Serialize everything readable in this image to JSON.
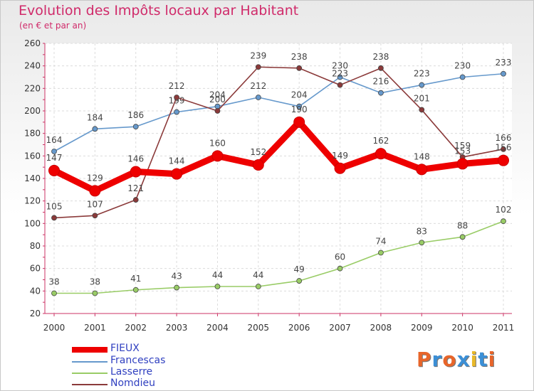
{
  "title": "Evolution des Impôts locaux par Habitant",
  "subtitle": "(en € et par an)",
  "logo": {
    "text": "Proxiti",
    "colors": [
      "#e8652a",
      "#3b8fd6",
      "#e8652a",
      "#3b8fd6",
      "#e8b92a",
      "#3b8fd6",
      "#e8652a"
    ]
  },
  "chart_data": {
    "type": "line",
    "title": "Evolution des Impôts locaux par Habitant",
    "subtitle": "(en € et par an)",
    "xlabel": "",
    "ylabel": "",
    "ylim": [
      20,
      260
    ],
    "yticks": [
      20,
      40,
      60,
      80,
      100,
      120,
      140,
      160,
      180,
      200,
      220,
      240,
      260
    ],
    "grid": true,
    "legend_position": "bottom-left",
    "x": [
      "2000",
      "2001",
      "2002",
      "2003",
      "2004",
      "2005",
      "2006",
      "2007",
      "2008",
      "2009",
      "2010",
      "2011"
    ],
    "series": [
      {
        "name": "Lasserre",
        "color": "#99cc66",
        "values": [
          38,
          38,
          41,
          43,
          44,
          44,
          49,
          60,
          74,
          83,
          88,
          102
        ]
      },
      {
        "name": "Francescas",
        "color": "#6699cc",
        "values": [
          164,
          184,
          186,
          199,
          204,
          212,
          204,
          230,
          216,
          223,
          230,
          233
        ]
      },
      {
        "name": "Nomdieu",
        "color": "#8b3a3a",
        "values": [
          105,
          107,
          121,
          212,
          200,
          239,
          238,
          223,
          238,
          201,
          159,
          166
        ]
      },
      {
        "name": "FIEUX",
        "color": "#ee0000",
        "values": [
          147,
          129,
          146,
          144,
          160,
          152,
          190,
          149,
          162,
          148,
          153,
          156
        ]
      }
    ],
    "data_labels": {
      "Lasserre": [
        "38",
        "38",
        "41",
        "43",
        "44",
        "44",
        "49",
        "60",
        "74",
        "83",
        "88",
        "102"
      ],
      "Francescas": [
        "164",
        "184",
        "186",
        "199",
        "204",
        "212",
        "204",
        "230",
        "216",
        "223",
        "230",
        "233"
      ],
      "Nomdieu": [
        "105",
        "107",
        "121",
        "212",
        "200",
        "239",
        "238",
        "223",
        "238",
        "201",
        "159",
        "166"
      ],
      "FIEUX": [
        "147",
        "129",
        "146",
        "144",
        "160",
        "152",
        "190",
        "149",
        "162",
        "148",
        "153",
        "156"
      ]
    }
  },
  "legend": [
    {
      "label": "FIEUX",
      "color": "#ee0000"
    },
    {
      "label": "Francescas",
      "color": "#6699cc"
    },
    {
      "label": "Lasserre",
      "color": "#99cc66"
    },
    {
      "label": "Nomdieu",
      "color": "#8b3a3a"
    }
  ]
}
